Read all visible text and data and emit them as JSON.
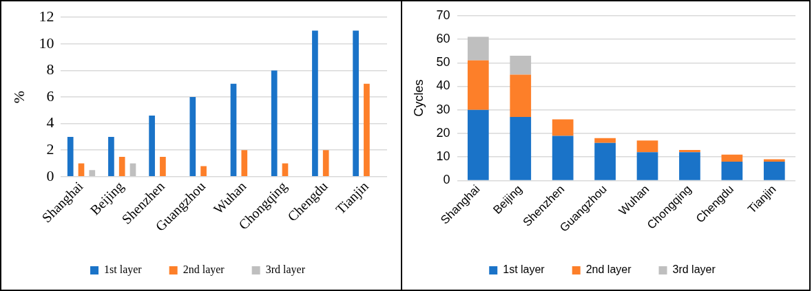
{
  "chart_data": [
    {
      "type": "bar",
      "ylabel": "%",
      "categories": [
        "Shanghai",
        "Beijing",
        "Shenzhen",
        "Guangzhou",
        "Wuhan",
        "Chongqing",
        "Chengdu",
        "Tianjin"
      ],
      "series": [
        {
          "name": "1st layer",
          "color": "#1a73c8",
          "values": [
            3,
            3,
            4.6,
            6,
            7,
            8,
            11,
            11
          ]
        },
        {
          "name": "2nd layer",
          "color": "#fd7f29",
          "values": [
            1,
            1.5,
            1.5,
            0.8,
            2,
            1,
            2,
            7
          ]
        },
        {
          "name": "3rd layer",
          "color": "#bfbfbf",
          "values": [
            0.5,
            1,
            null,
            null,
            null,
            null,
            null,
            null
          ]
        }
      ],
      "ylim": [
        0,
        12
      ],
      "yticks": [
        0,
        2,
        4,
        6,
        8,
        10,
        12
      ],
      "grid": "y",
      "legend": "bottom"
    },
    {
      "type": "bar",
      "stacked": true,
      "ylabel": "Cycles",
      "categories": [
        "Shanghai",
        "Beijing",
        "Shenzhen",
        "Guangzhou",
        "Wuhan",
        "Chongqing",
        "Chengdu",
        "Tianjin"
      ],
      "series": [
        {
          "name": "1st layer",
          "color": "#1a73c8",
          "values": [
            30,
            27,
            19,
            16,
            12,
            12,
            8,
            8
          ]
        },
        {
          "name": "2nd layer",
          "color": "#fd7f29",
          "values": [
            21,
            18,
            7,
            2,
            5,
            1,
            3,
            1
          ]
        },
        {
          "name": "3rd layer",
          "color": "#bfbfbf",
          "values": [
            10,
            8,
            null,
            null,
            null,
            null,
            null,
            null
          ]
        }
      ],
      "ylim": [
        0,
        70
      ],
      "yticks": [
        0,
        10,
        20,
        30,
        40,
        50,
        60,
        70
      ],
      "grid": "y",
      "legend": "bottom"
    }
  ]
}
